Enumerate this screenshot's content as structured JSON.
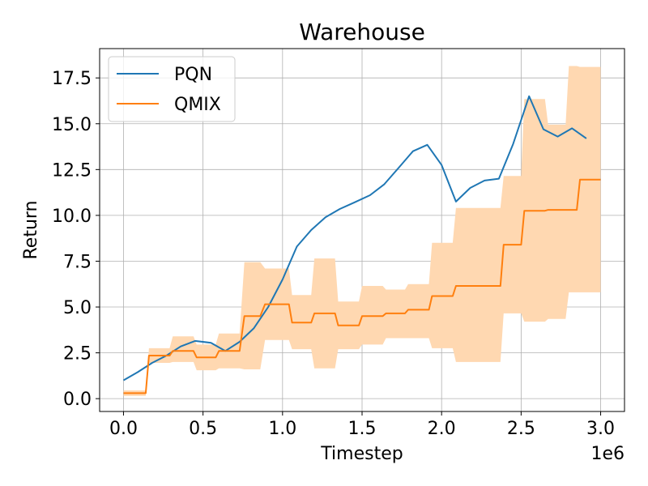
{
  "chart_data": {
    "type": "line",
    "title": "Warehouse",
    "xlabel": "Timestep",
    "ylabel": "Return",
    "x_offset_label": "1e6",
    "xlim": [
      -0.15,
      3.15
    ],
    "ylim": [
      -0.7,
      19.1
    ],
    "xticks": [
      0.0,
      0.5,
      1.0,
      1.5,
      2.0,
      2.5,
      3.0
    ],
    "xtick_labels": [
      "0.0",
      "0.5",
      "1.0",
      "1.5",
      "2.0",
      "2.5",
      "3.0"
    ],
    "yticks": [
      0.0,
      2.5,
      5.0,
      7.5,
      10.0,
      12.5,
      15.0,
      17.5
    ],
    "ytick_labels": [
      "0.0",
      "2.5",
      "5.0",
      "7.5",
      "10.0",
      "12.5",
      "15.0",
      "17.5"
    ],
    "grid": true,
    "legend_position": "top-left",
    "series": [
      {
        "name": "PQN",
        "color": "#1f77b4",
        "x": [
          0.0,
          0.09,
          0.18,
          0.27,
          0.36,
          0.45,
          0.55,
          0.64,
          0.73,
          0.82,
          0.91,
          1.0,
          1.09,
          1.18,
          1.27,
          1.36,
          1.45,
          1.55,
          1.64,
          1.73,
          1.82,
          1.91,
          2.0,
          2.09,
          2.18,
          2.27,
          2.36,
          2.45,
          2.55,
          2.64,
          2.73,
          2.82,
          2.91
        ],
        "y": [
          1.0,
          1.45,
          1.95,
          2.35,
          2.85,
          3.15,
          3.05,
          2.6,
          3.1,
          3.85,
          5.0,
          6.5,
          8.3,
          9.2,
          9.9,
          10.35,
          10.7,
          11.1,
          11.7,
          12.6,
          13.5,
          13.85,
          12.75,
          10.75,
          11.5,
          11.9,
          12.0,
          13.9,
          16.5,
          14.7,
          14.3,
          14.75,
          14.2
        ]
      },
      {
        "name": "QMIX",
        "color": "#ff7f0e",
        "fill_color": "#ffd8b1",
        "x": [
          0.0,
          0.14,
          0.16,
          0.29,
          0.31,
          0.44,
          0.46,
          0.58,
          0.6,
          0.73,
          0.76,
          0.86,
          0.89,
          1.04,
          1.06,
          1.18,
          1.2,
          1.33,
          1.35,
          1.48,
          1.5,
          1.63,
          1.65,
          1.77,
          1.79,
          1.92,
          1.94,
          2.07,
          2.09,
          2.37,
          2.39,
          2.5,
          2.52,
          2.65,
          2.67,
          2.78,
          2.8,
          2.85,
          2.87,
          2.95,
          2.97,
          3.0
        ],
        "y": [
          0.3,
          0.3,
          2.35,
          2.35,
          2.6,
          2.6,
          2.25,
          2.25,
          2.6,
          2.6,
          4.5,
          4.5,
          5.15,
          5.15,
          4.15,
          4.15,
          4.65,
          4.65,
          4.0,
          4.0,
          4.5,
          4.5,
          4.65,
          4.65,
          4.85,
          4.85,
          5.6,
          5.6,
          6.15,
          6.15,
          8.4,
          8.4,
          10.25,
          10.25,
          10.3,
          10.3,
          10.3,
          10.3,
          11.95,
          11.95,
          11.95,
          11.95
        ],
        "lower": [
          0.15,
          0.15,
          1.95,
          1.95,
          2.0,
          2.0,
          1.55,
          1.55,
          1.65,
          1.65,
          1.6,
          1.6,
          3.2,
          3.2,
          2.7,
          2.7,
          1.65,
          1.65,
          2.7,
          2.7,
          2.95,
          2.95,
          3.3,
          3.3,
          3.3,
          3.3,
          2.75,
          2.75,
          2.0,
          2.0,
          4.65,
          4.65,
          4.2,
          4.2,
          4.35,
          4.35,
          5.8,
          5.8,
          5.8,
          5.8,
          5.8,
          5.8
        ],
        "upper": [
          0.45,
          0.45,
          2.75,
          2.75,
          3.4,
          3.4,
          2.95,
          2.95,
          3.55,
          3.55,
          7.45,
          7.45,
          7.1,
          7.1,
          5.65,
          5.65,
          7.65,
          7.65,
          5.3,
          5.3,
          6.15,
          6.15,
          5.95,
          5.95,
          6.25,
          6.25,
          8.5,
          8.5,
          10.4,
          10.4,
          12.15,
          12.15,
          16.35,
          16.35,
          14.95,
          14.95,
          18.15,
          18.15,
          18.1,
          18.1,
          18.1,
          18.1
        ]
      }
    ]
  }
}
